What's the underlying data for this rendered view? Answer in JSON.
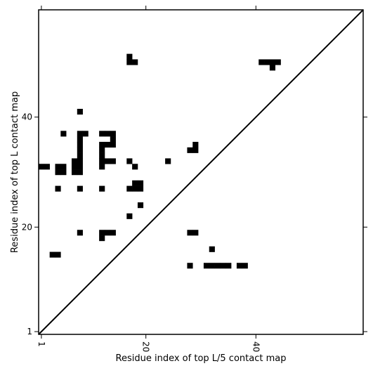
{
  "chart_data": {
    "type": "heatmap",
    "title": "",
    "xlabel": "Residue index of top L/5 contact map",
    "ylabel": "Residue index of top L contact map",
    "xlim": [
      0.5,
      59.5
    ],
    "ylim": [
      0.5,
      59.5
    ],
    "xticks": [
      {
        "value": 1,
        "label": "1"
      },
      {
        "value": 20,
        "label": "20"
      },
      {
        "value": 40,
        "label": "40"
      }
    ],
    "yticks": [
      {
        "value": 1,
        "label": "1"
      },
      {
        "value": 20,
        "label": "20"
      },
      {
        "value": 40,
        "label": "40"
      }
    ],
    "diagonal": true,
    "cell_color": "#000000",
    "background": "#ffffff",
    "cells": [
      [
        1,
        31
      ],
      [
        2,
        31
      ],
      [
        3,
        15
      ],
      [
        4,
        15
      ],
      [
        4,
        27
      ],
      [
        4,
        30
      ],
      [
        5,
        30
      ],
      [
        4,
        31
      ],
      [
        5,
        31
      ],
      [
        5,
        37
      ],
      [
        7,
        30
      ],
      [
        8,
        30
      ],
      [
        7,
        31
      ],
      [
        8,
        31
      ],
      [
        7,
        32
      ],
      [
        8,
        32
      ],
      [
        8,
        33
      ],
      [
        8,
        27
      ],
      [
        8,
        34
      ],
      [
        8,
        35
      ],
      [
        8,
        37
      ],
      [
        9,
        37
      ],
      [
        8,
        36
      ],
      [
        8,
        19
      ],
      [
        8,
        41
      ],
      [
        12,
        19
      ],
      [
        13,
        19
      ],
      [
        14,
        19
      ],
      [
        12,
        18
      ],
      [
        12,
        27
      ],
      [
        12,
        31
      ],
      [
        12,
        32
      ],
      [
        13,
        32
      ],
      [
        14,
        32
      ],
      [
        12,
        33
      ],
      [
        12,
        34
      ],
      [
        12,
        35
      ],
      [
        13,
        35
      ],
      [
        14,
        35
      ],
      [
        12,
        37
      ],
      [
        13,
        37
      ],
      [
        14,
        37
      ],
      [
        14,
        36
      ],
      [
        17,
        22
      ],
      [
        17,
        27
      ],
      [
        18,
        27
      ],
      [
        19,
        27
      ],
      [
        18,
        28
      ],
      [
        19,
        28
      ],
      [
        17,
        32
      ],
      [
        18,
        31
      ],
      [
        19,
        24
      ],
      [
        17,
        50
      ],
      [
        18,
        50
      ],
      [
        17,
        51
      ],
      [
        24,
        32
      ],
      [
        28,
        19
      ],
      [
        29,
        19
      ],
      [
        28,
        13
      ],
      [
        28,
        34
      ],
      [
        29,
        34
      ],
      [
        29,
        35
      ],
      [
        31,
        13
      ],
      [
        32,
        13
      ],
      [
        33,
        13
      ],
      [
        34,
        13
      ],
      [
        35,
        13
      ],
      [
        32,
        16
      ],
      [
        37,
        13
      ],
      [
        38,
        13
      ],
      [
        41,
        50
      ],
      [
        42,
        50
      ],
      [
        43,
        50
      ],
      [
        44,
        50
      ],
      [
        43,
        49
      ]
    ]
  }
}
